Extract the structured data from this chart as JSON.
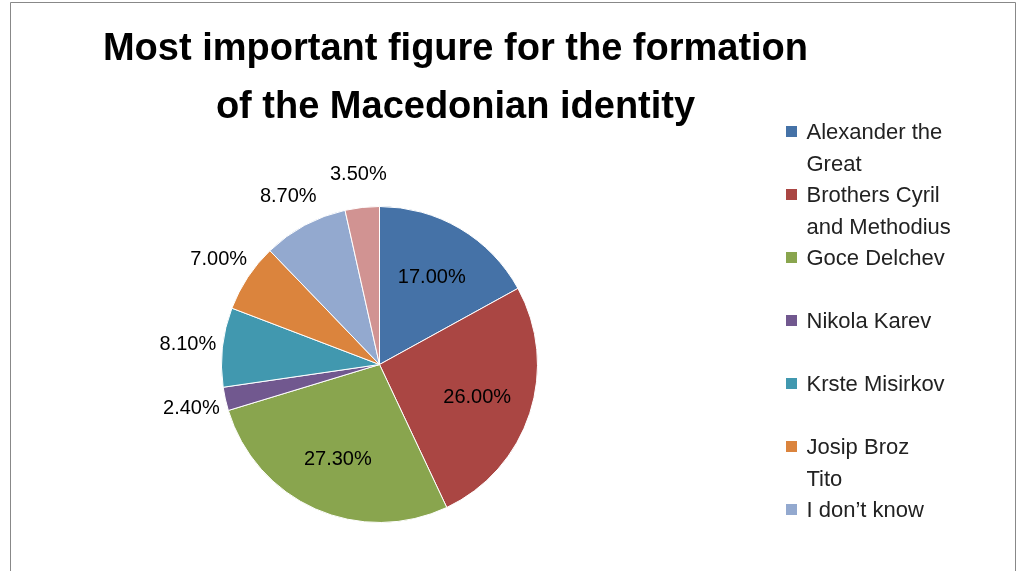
{
  "chart_data": {
    "type": "pie",
    "title": "Most important figure for the formation of the Macedonian identity",
    "categories": [
      "Alexander the Great",
      "Brothers Cyril and Methodius",
      "Goce Delchev",
      "Nikola Karev",
      "Krste Misirkov",
      "Josip  Broz Tito",
      "I don’t know",
      null
    ],
    "values": [
      17,
      26,
      27.3,
      2.4,
      8.1,
      7,
      8.7,
      3.5
    ],
    "value_labels": [
      "17.00%",
      "26.00%",
      "27.30%",
      "2.40%",
      "8.10%",
      "7.00%",
      "8.70%",
      "3.50%"
    ],
    "colors": [
      "#4572a7",
      "#aa4643",
      "#89a54e",
      "#71588f",
      "#4198af",
      "#db843d",
      "#93a9cf",
      "#d19392"
    ],
    "legend": "right"
  }
}
